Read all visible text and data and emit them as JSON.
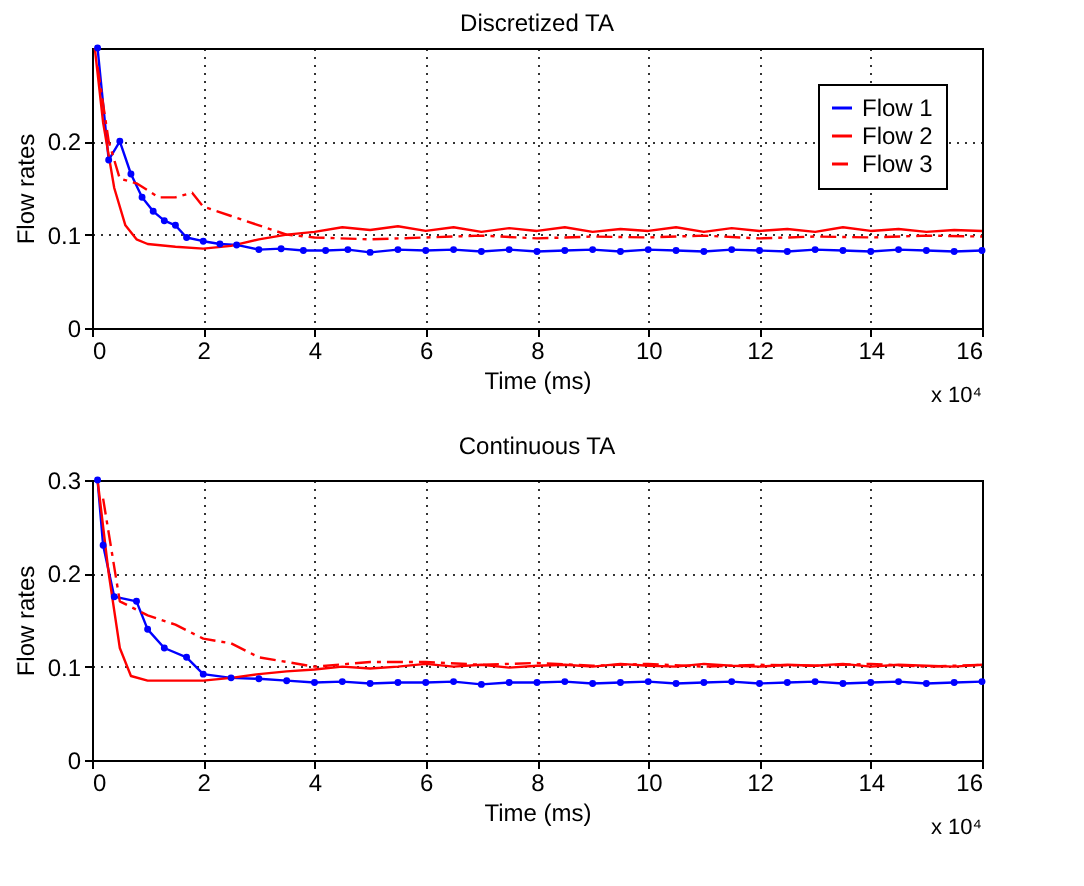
{
  "chart_data": [
    {
      "type": "line",
      "title": "Discretized TA",
      "xlabel": "Time (ms)",
      "ylabel": "Flow rates",
      "annotations": [
        "x 10⁴"
      ],
      "xlim": [
        0,
        16
      ],
      "xticks": [
        0,
        2,
        4,
        6,
        8,
        10,
        12,
        14,
        16
      ],
      "ylim": [
        0,
        0.3
      ],
      "yticks": [
        0,
        0.1,
        0.2
      ],
      "grid": true,
      "legend": "top right",
      "series": [
        {
          "name": "Flow 1",
          "color": "#0000ff",
          "marker": "circle",
          "line_style": "solid",
          "x": [
            0.1,
            0.3,
            0.5,
            0.7,
            0.9,
            1.1,
            1.3,
            1.5,
            1.7,
            2.0,
            2.3,
            2.6,
            3.0,
            3.4,
            3.8,
            4.2,
            4.6,
            5.0,
            5.5,
            6.0,
            6.5,
            7.0,
            7.5,
            8.0,
            8.5,
            9.0,
            9.5,
            10.0,
            10.5,
            11.0,
            11.5,
            12.0,
            12.5,
            13.0,
            13.5,
            14.0,
            14.5,
            15.0,
            15.5,
            16.0
          ],
          "values": [
            0.3,
            0.18,
            0.2,
            0.165,
            0.14,
            0.125,
            0.115,
            0.11,
            0.097,
            0.093,
            0.09,
            0.089,
            0.084,
            0.085,
            0.083,
            0.083,
            0.084,
            0.081,
            0.084,
            0.083,
            0.084,
            0.082,
            0.084,
            0.082,
            0.083,
            0.084,
            0.082,
            0.084,
            0.083,
            0.082,
            0.084,
            0.083,
            0.082,
            0.084,
            0.083,
            0.082,
            0.084,
            0.083,
            0.082,
            0.083
          ]
        },
        {
          "name": "Flow 2",
          "color": "#ff0000",
          "line_style": "solid",
          "x": [
            0.05,
            0.2,
            0.4,
            0.6,
            0.8,
            1.0,
            1.5,
            2.0,
            2.5,
            3.0,
            3.5,
            4.0,
            4.5,
            5.0,
            5.5,
            6.0,
            6.5,
            7.0,
            7.5,
            8.0,
            8.5,
            9.0,
            9.5,
            10.0,
            10.5,
            11.0,
            11.5,
            12.0,
            12.5,
            13.0,
            13.5,
            14.0,
            14.5,
            15.0,
            15.5,
            16.0
          ],
          "values": [
            0.3,
            0.22,
            0.15,
            0.11,
            0.095,
            0.09,
            0.087,
            0.085,
            0.088,
            0.095,
            0.1,
            0.103,
            0.108,
            0.105,
            0.109,
            0.104,
            0.108,
            0.103,
            0.107,
            0.104,
            0.108,
            0.103,
            0.106,
            0.104,
            0.108,
            0.103,
            0.107,
            0.104,
            0.106,
            0.103,
            0.108,
            0.104,
            0.106,
            0.103,
            0.105,
            0.104
          ]
        },
        {
          "name": "Flow 3",
          "color": "#ff0000",
          "line_style": "dashed",
          "x": [
            0.1,
            0.3,
            0.5,
            0.8,
            1.2,
            1.5,
            1.8,
            2.0,
            2.5,
            3.0,
            3.5,
            4.0,
            5.0,
            6.0,
            7.0,
            8.0,
            9.0,
            10.0,
            11.0,
            12.0,
            13.0,
            14.0,
            15.0,
            16.0
          ],
          "values": [
            0.28,
            0.2,
            0.16,
            0.155,
            0.14,
            0.14,
            0.145,
            0.13,
            0.12,
            0.11,
            0.1,
            0.097,
            0.095,
            0.097,
            0.099,
            0.096,
            0.098,
            0.097,
            0.099,
            0.096,
            0.098,
            0.097,
            0.099,
            0.098
          ]
        }
      ]
    },
    {
      "type": "line",
      "title": "Continuous TA",
      "xlabel": "Time (ms)",
      "ylabel": "Flow rates",
      "annotations": [
        "x 10⁴"
      ],
      "xlim": [
        0,
        16
      ],
      "xticks": [
        0,
        2,
        4,
        6,
        8,
        10,
        12,
        14,
        16
      ],
      "ylim": [
        0,
        0.3
      ],
      "yticks": [
        0,
        0.1,
        0.2,
        0.3
      ],
      "grid": true,
      "legend": "top right",
      "series": [
        {
          "name": "Flow 1",
          "color": "#0000ff",
          "marker": "circle",
          "line_style": "solid",
          "x": [
            0.1,
            0.2,
            0.4,
            0.8,
            1.0,
            1.3,
            1.7,
            2.0,
            2.5,
            3.0,
            3.5,
            4.0,
            4.5,
            5.0,
            5.5,
            6.0,
            6.5,
            7.0,
            7.5,
            8.0,
            8.5,
            9.0,
            9.5,
            10.0,
            10.5,
            11.0,
            11.5,
            12.0,
            12.5,
            13.0,
            13.5,
            14.0,
            14.5,
            15.0,
            15.5,
            16.0
          ],
          "values": [
            0.3,
            0.23,
            0.175,
            0.17,
            0.14,
            0.12,
            0.11,
            0.092,
            0.088,
            0.087,
            0.085,
            0.083,
            0.084,
            0.082,
            0.083,
            0.083,
            0.084,
            0.081,
            0.083,
            0.083,
            0.084,
            0.082,
            0.083,
            0.084,
            0.082,
            0.083,
            0.084,
            0.082,
            0.083,
            0.084,
            0.082,
            0.083,
            0.084,
            0.082,
            0.083,
            0.084
          ]
        },
        {
          "name": "Flow 2",
          "color": "#ff0000",
          "line_style": "solid",
          "x": [
            0.1,
            0.3,
            0.5,
            0.7,
            1.0,
            1.5,
            2.0,
            2.5,
            3.0,
            3.5,
            4.0,
            4.5,
            5.0,
            5.5,
            6.0,
            6.5,
            7.0,
            7.5,
            8.0,
            8.5,
            9.0,
            9.5,
            10.0,
            10.5,
            11.0,
            11.5,
            12.0,
            12.5,
            13.0,
            13.5,
            14.0,
            14.5,
            15.0,
            15.5,
            16.0
          ],
          "values": [
            0.3,
            0.2,
            0.12,
            0.09,
            0.085,
            0.085,
            0.085,
            0.088,
            0.092,
            0.095,
            0.097,
            0.1,
            0.098,
            0.1,
            0.103,
            0.1,
            0.102,
            0.099,
            0.101,
            0.102,
            0.1,
            0.103,
            0.101,
            0.1,
            0.103,
            0.101,
            0.1,
            0.102,
            0.101,
            0.103,
            0.1,
            0.102,
            0.101,
            0.1,
            0.102
          ]
        },
        {
          "name": "Flow 3",
          "color": "#ff0000",
          "line_style": "dashed",
          "x": [
            0.2,
            0.5,
            1.0,
            1.5,
            2.0,
            2.5,
            3.0,
            3.5,
            4.0,
            5.0,
            6.0,
            7.0,
            8.0,
            9.0,
            10.0,
            11.0,
            12.0,
            13.0,
            14.0,
            15.0,
            16.0
          ],
          "values": [
            0.28,
            0.17,
            0.155,
            0.145,
            0.13,
            0.125,
            0.11,
            0.105,
            0.1,
            0.105,
            0.105,
            0.102,
            0.104,
            0.101,
            0.103,
            0.1,
            0.102,
            0.101,
            0.103,
            0.1,
            0.102
          ]
        }
      ]
    }
  ]
}
